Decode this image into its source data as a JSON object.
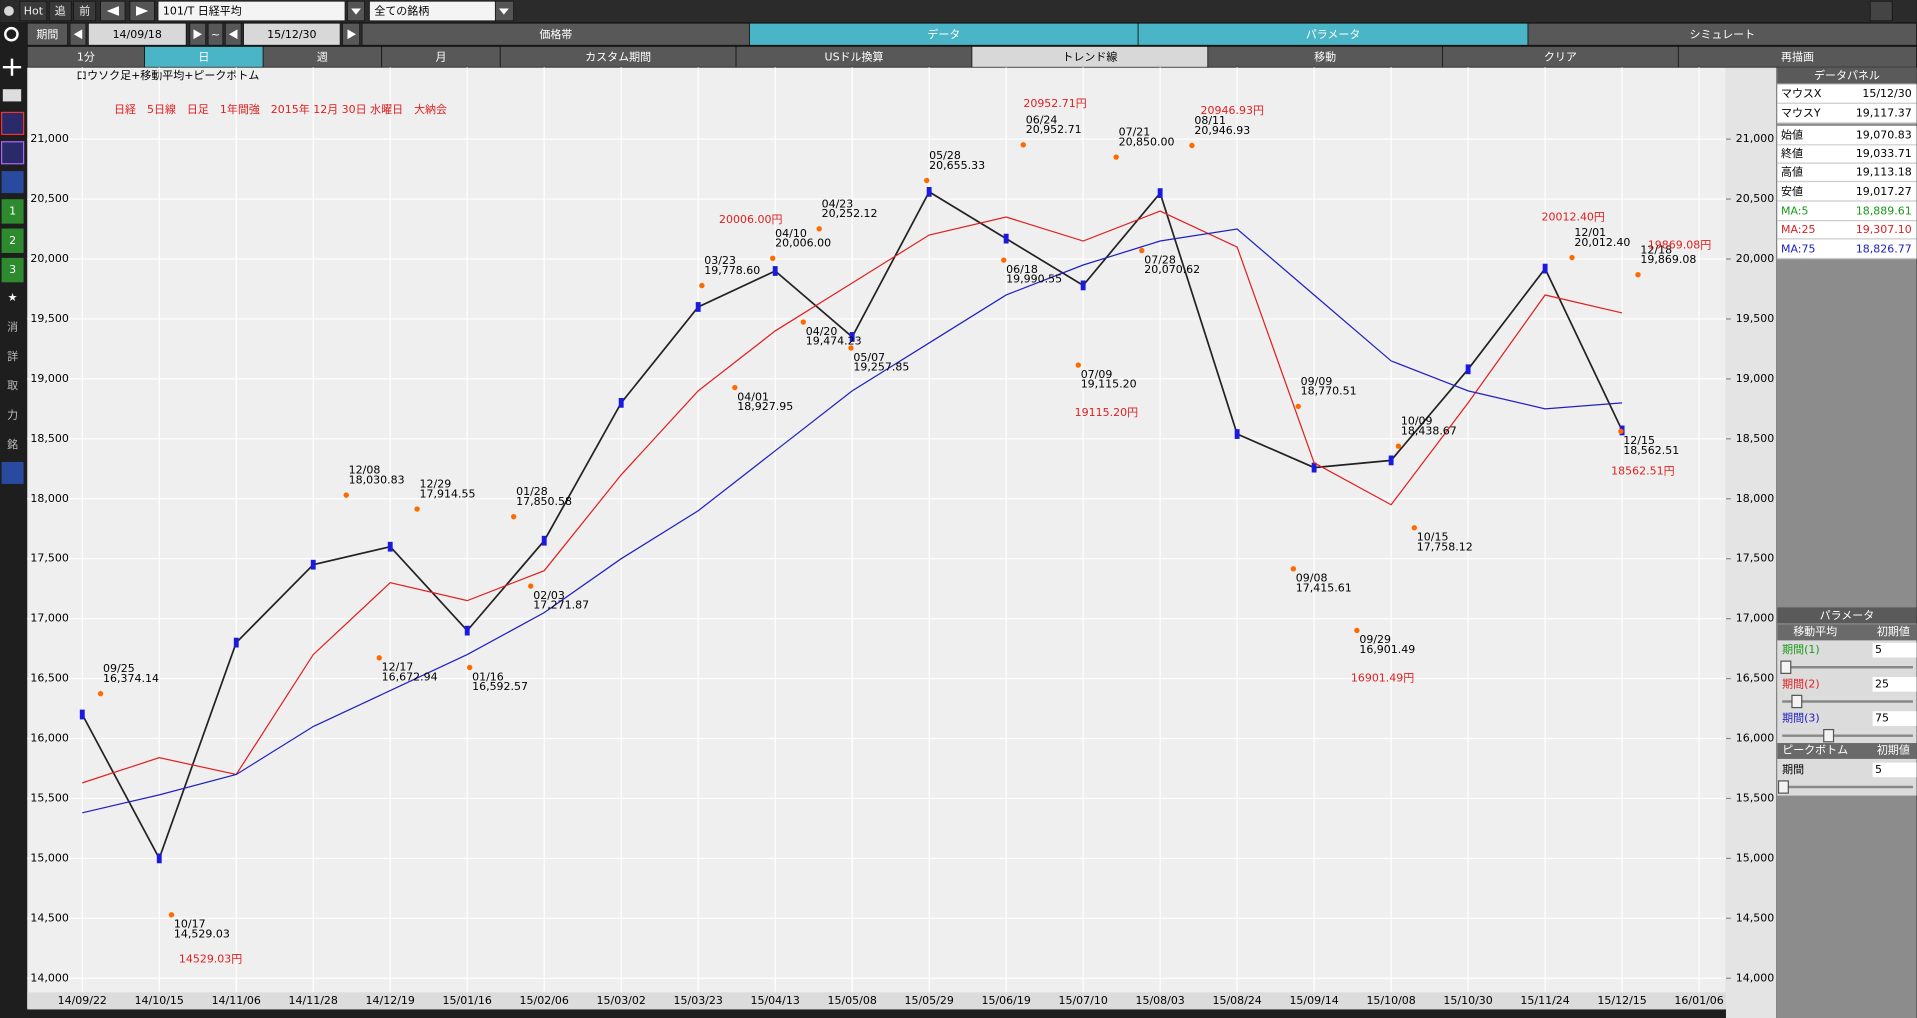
{
  "toolbar": {
    "row1": [
      "Hot",
      "追",
      "前"
    ],
    "symbol": "101/T 日経平均",
    "universe": "全ての銘柄",
    "period_label": "期間",
    "from": "14/09/18",
    "tilde": "~",
    "to": "15/12/30",
    "tabs": [
      "価格帯",
      "データ",
      "パラメータ",
      "シミュレート"
    ],
    "buttons": [
      "1分",
      "日",
      "週",
      "月",
      "カスタム期間",
      "USドル換算",
      "トレンド線",
      "移動",
      "クリア",
      "再描画"
    ]
  },
  "sidebar": [
    "1",
    "2",
    "3",
    "消",
    "詳",
    "取",
    "力",
    "銘"
  ],
  "chart_data": {
    "type": "line",
    "subtitle": "ロウソク足+移動平均+ピークボトム",
    "title": "日経　5日線　日足　1年間強　2015年 12月 30日 水曜日　大納会",
    "categories": [
      "14/09/22",
      "14/10/15",
      "14/11/06",
      "14/11/28",
      "14/12/19",
      "15/01/16",
      "15/02/06",
      "15/03/02",
      "15/03/23",
      "15/04/13",
      "15/05/08",
      "15/05/29",
      "15/06/19",
      "15/07/10",
      "15/08/03",
      "15/08/24",
      "15/09/14",
      "15/10/08",
      "15/10/30",
      "15/11/24",
      "15/12/15",
      "16/01/06"
    ],
    "series": [
      {
        "name": "終値",
        "color": "#222222",
        "values": [
          16200,
          15000,
          16800,
          17450,
          17600,
          16900,
          17650,
          18800,
          19600,
          19900,
          19350,
          20560,
          20170,
          19780,
          20550,
          18540,
          18260,
          18320,
          19080,
          19920,
          18570,
          null
        ]
      },
      {
        "name": "MA:25",
        "color": "#e02020",
        "values": [
          15630,
          15840,
          15700,
          16700,
          17300,
          17150,
          17400,
          18200,
          18900,
          19400,
          19800,
          20200,
          20350,
          20150,
          20400,
          20100,
          18300,
          17950,
          18800,
          19700,
          19550,
          null
        ]
      },
      {
        "name": "MA:75",
        "color": "#2020c0",
        "values": [
          15380,
          15530,
          15700,
          16100,
          16400,
          16700,
          17050,
          17500,
          17900,
          18400,
          18900,
          19300,
          19700,
          19950,
          20150,
          20250,
          19700,
          19150,
          18900,
          18750,
          18800,
          null
        ]
      }
    ],
    "ylim": [
      13750,
      21600
    ],
    "yticks": [
      {
        "value": 14000,
        "label": "14,000"
      },
      {
        "value": 14500,
        "label": "14,500"
      },
      {
        "value": 15000,
        "label": "15,000"
      },
      {
        "value": 15500,
        "label": "15,500"
      },
      {
        "value": 16000,
        "label": "16,000"
      },
      {
        "value": 16500,
        "label": "16,500"
      },
      {
        "value": 17000,
        "label": "17,000"
      },
      {
        "value": 17500,
        "label": "17,500"
      },
      {
        "value": 18000,
        "label": "18,000"
      },
      {
        "value": 18500,
        "label": "18,500"
      },
      {
        "value": 19000,
        "label": "19,000"
      },
      {
        "value": 19500,
        "label": "19,500"
      },
      {
        "value": 20000,
        "label": "20,000"
      },
      {
        "value": 20500,
        "label": "20,500"
      },
      {
        "value": 21000,
        "label": "21,000"
      }
    ],
    "grid": true,
    "peaks": [
      {
        "date": "09/25",
        "value": 16374.14,
        "label": "16,374.14"
      },
      {
        "date": "10/17",
        "value": 14529.03,
        "label": "14,529.03"
      },
      {
        "date": "12/08",
        "value": 18030.83,
        "label": "18,030.83"
      },
      {
        "date": "12/17",
        "value": 16672.94,
        "label": "16,672.94"
      },
      {
        "date": "12/29",
        "value": 17914.55,
        "label": "17,914.55"
      },
      {
        "date": "01/16",
        "value": 16592.57,
        "label": "16,592.57"
      },
      {
        "date": "01/28",
        "value": 17850.58,
        "label": "17,850.58"
      },
      {
        "date": "02/03",
        "value": 17271.87,
        "label": "17,271.87"
      },
      {
        "date": "03/23",
        "value": 19778.6,
        "label": "19,778.60"
      },
      {
        "date": "04/01",
        "value": 18927.95,
        "label": "18,927.95"
      },
      {
        "date": "04/10",
        "value": 20006.0,
        "label": "20,006.00"
      },
      {
        "date": "04/20",
        "value": 19474.23,
        "label": "19,474.23"
      },
      {
        "date": "04/23",
        "value": 20252.12,
        "label": "20,252.12"
      },
      {
        "date": "05/07",
        "value": 19257.85,
        "label": "19,257.85"
      },
      {
        "date": "05/28",
        "value": 20655.33,
        "label": "20,655.33"
      },
      {
        "date": "06/18",
        "value": 19990.55,
        "label": "19,990.55"
      },
      {
        "date": "06/24",
        "value": 20952.71,
        "label": "20,952.71"
      },
      {
        "date": "07/09",
        "value": 19115.2,
        "label": "19,115.20"
      },
      {
        "date": "07/21",
        "value": 20850.0,
        "label": "20,850.00"
      },
      {
        "date": "07/28",
        "value": 20070.62,
        "label": "20,070.62"
      },
      {
        "date": "08/11",
        "value": 20946.93,
        "label": "20,946.93"
      },
      {
        "date": "09/08",
        "value": 17415.61,
        "label": "17,415.61"
      },
      {
        "date": "09/09",
        "value": 18770.51,
        "label": "18,770.51"
      },
      {
        "date": "09/29",
        "value": 16901.49,
        "label": "16,901.49"
      },
      {
        "date": "10/09",
        "value": 18438.67,
        "label": "18,438.67"
      },
      {
        "date": "10/15",
        "value": 17758.12,
        "label": "17,758.12"
      },
      {
        "date": "12/01",
        "value": 20012.4,
        "label": "20,012.40"
      },
      {
        "date": "12/15",
        "value": 18562.51,
        "label": "18,562.51"
      },
      {
        "date": "12/18",
        "value": 19869.08,
        "label": "19,869.08"
      }
    ],
    "annotations": [
      "14529.03円",
      "20006.00円",
      "20952.71円",
      "20946.93円",
      "19115.20円",
      "16901.49円",
      "20012.40円",
      "19869.08円",
      "18562.51円"
    ]
  },
  "data_panel": {
    "title": "データパネル",
    "rows": [
      [
        "マウスX",
        "15/12/30"
      ],
      [
        "マウスY",
        "19,117.37"
      ],
      [
        "始値",
        "19,070.83"
      ],
      [
        "終値",
        "19,033.71"
      ],
      [
        "高値",
        "19,113.18"
      ],
      [
        "安値",
        "19,017.27"
      ],
      [
        "MA:5",
        "18,889.61"
      ],
      [
        "MA:25",
        "19,307.10"
      ],
      [
        "MA:75",
        "18,826.77"
      ]
    ]
  },
  "parameter_panel": {
    "title": "パラメータ",
    "section1": "移動平均",
    "default1": "初期値",
    "rows1": [
      [
        "期間(1)",
        "5"
      ],
      [
        "期間(2)",
        "25"
      ],
      [
        "期間(3)",
        "75"
      ]
    ],
    "section2": "ピークボトム",
    "default2": "初期値",
    "rows2": [
      [
        "期間",
        "5"
      ]
    ]
  }
}
